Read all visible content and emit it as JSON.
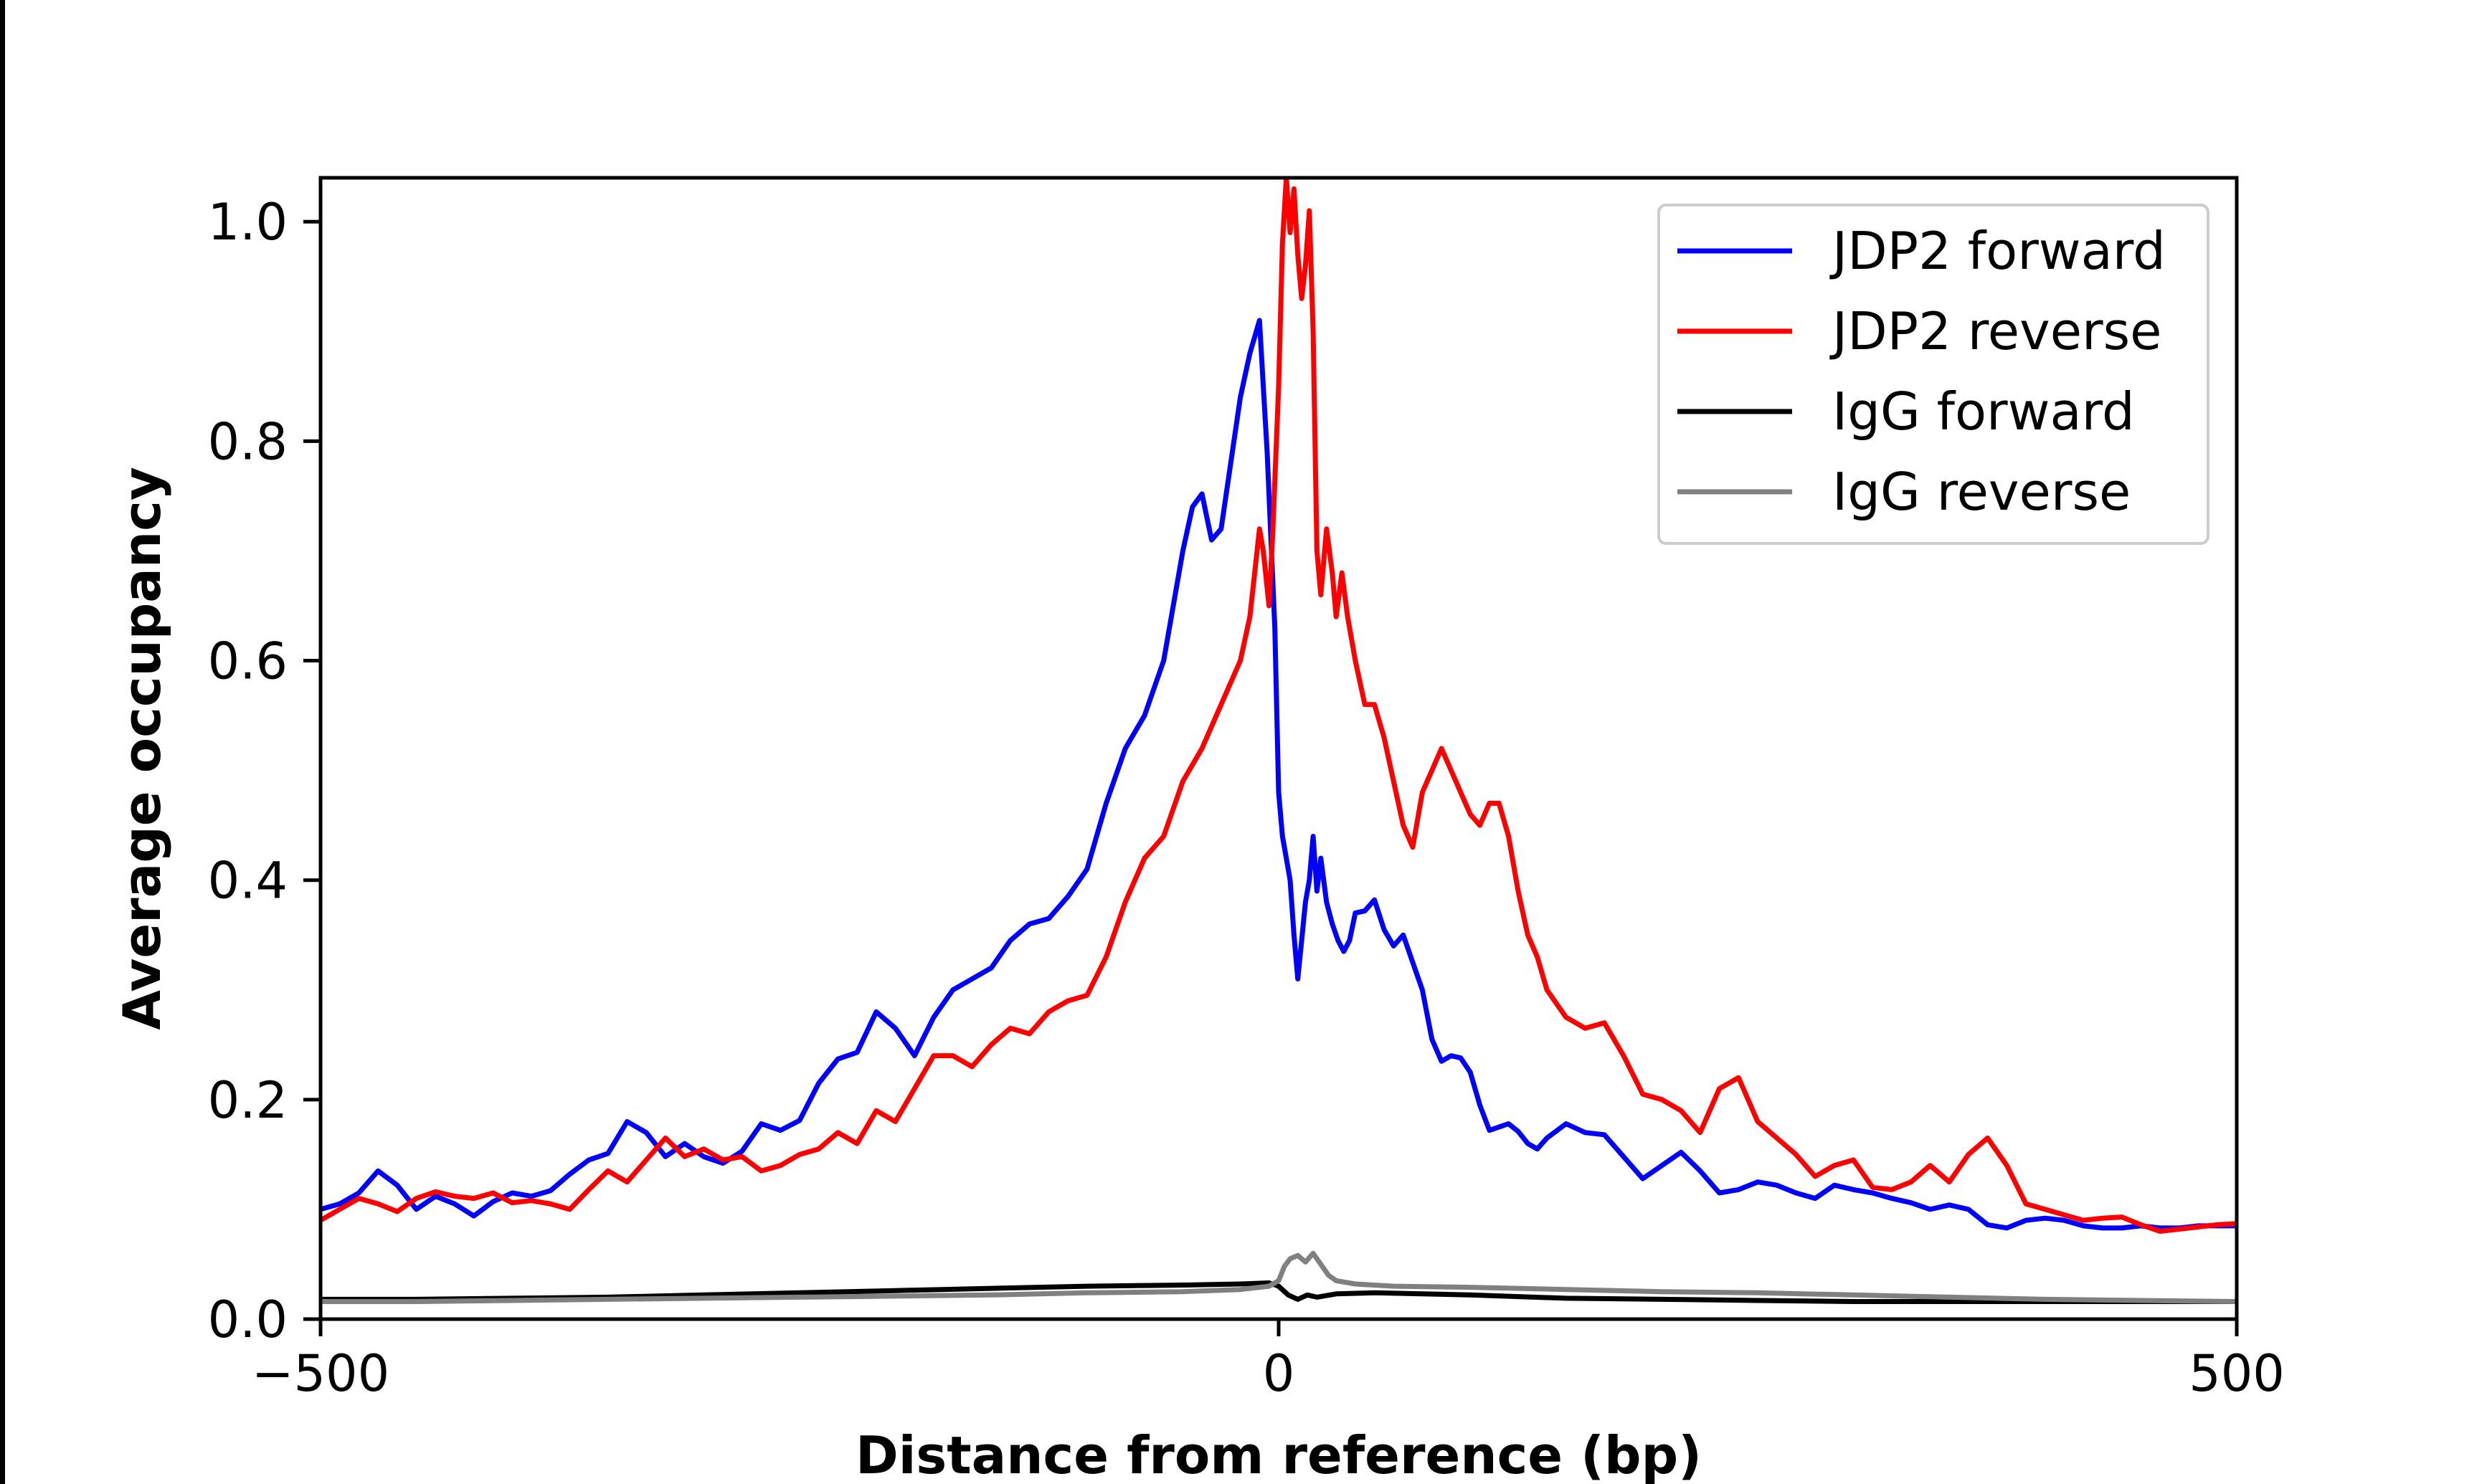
{
  "chart_data": {
    "type": "line",
    "title": "",
    "xlabel": "Distance from reference (bp)",
    "ylabel": "Average occupancy",
    "xlim": [
      -500,
      500
    ],
    "ylim": [
      0,
      1.04
    ],
    "xticks": [
      -500,
      0,
      500
    ],
    "xtick_labels": [
      "−500",
      "0",
      "500"
    ],
    "yticks": [
      0.0,
      0.2,
      0.4,
      0.6,
      0.8,
      1.0
    ],
    "ytick_labels": [
      "0.0",
      "0.2",
      "0.4",
      "0.6",
      "0.8",
      "1.0"
    ],
    "grid": false,
    "legend_position": "top-right",
    "series": [
      {
        "name": "JDP2 forward",
        "color": "#0000ff",
        "x": [
          -500,
          -490,
          -480,
          -470,
          -460,
          -450,
          -440,
          -430,
          -420,
          -410,
          -400,
          -390,
          -380,
          -370,
          -360,
          -350,
          -340,
          -330,
          -320,
          -310,
          -300,
          -290,
          -280,
          -270,
          -260,
          -250,
          -240,
          -230,
          -220,
          -210,
          -200,
          -190,
          -180,
          -170,
          -160,
          -150,
          -140,
          -130,
          -120,
          -110,
          -100,
          -90,
          -80,
          -70,
          -60,
          -50,
          -45,
          -40,
          -35,
          -30,
          -25,
          -20,
          -15,
          -10,
          -8,
          -6,
          -4,
          -2,
          0,
          2,
          4,
          6,
          8,
          10,
          12,
          14,
          16,
          18,
          20,
          22,
          25,
          28,
          31,
          34,
          37,
          40,
          45,
          50,
          55,
          60,
          65,
          70,
          75,
          80,
          85,
          90,
          95,
          100,
          105,
          110,
          115,
          120,
          125,
          130,
          135,
          140,
          150,
          160,
          170,
          180,
          190,
          200,
          210,
          220,
          230,
          240,
          250,
          260,
          270,
          280,
          290,
          300,
          310,
          320,
          330,
          340,
          350,
          360,
          370,
          380,
          390,
          400,
          410,
          420,
          430,
          440,
          450,
          460,
          470,
          480,
          490,
          500
        ],
        "y": [
          0.1,
          0.105,
          0.115,
          0.135,
          0.122,
          0.1,
          0.112,
          0.105,
          0.094,
          0.107,
          0.115,
          0.112,
          0.117,
          0.132,
          0.145,
          0.151,
          0.18,
          0.17,
          0.148,
          0.16,
          0.148,
          0.142,
          0.153,
          0.178,
          0.172,
          0.181,
          0.215,
          0.237,
          0.243,
          0.28,
          0.265,
          0.24,
          0.275,
          0.3,
          0.31,
          0.32,
          0.345,
          0.36,
          0.365,
          0.385,
          0.41,
          0.47,
          0.52,
          0.55,
          0.6,
          0.7,
          0.74,
          0.752,
          0.71,
          0.72,
          0.78,
          0.84,
          0.88,
          0.91,
          0.85,
          0.79,
          0.71,
          0.63,
          0.48,
          0.44,
          0.42,
          0.4,
          0.35,
          0.31,
          0.345,
          0.38,
          0.4,
          0.44,
          0.39,
          0.42,
          0.38,
          0.36,
          0.345,
          0.335,
          0.345,
          0.37,
          0.372,
          0.382,
          0.355,
          0.34,
          0.35,
          0.325,
          0.3,
          0.255,
          0.235,
          0.24,
          0.238,
          0.225,
          0.195,
          0.172,
          0.175,
          0.178,
          0.171,
          0.16,
          0.155,
          0.165,
          0.178,
          0.17,
          0.168,
          0.148,
          0.128,
          0.14,
          0.152,
          0.135,
          0.115,
          0.118,
          0.125,
          0.122,
          0.115,
          0.11,
          0.122,
          0.118,
          0.115,
          0.11,
          0.106,
          0.1,
          0.104,
          0.1,
          0.086,
          0.083,
          0.09,
          0.092,
          0.09,
          0.085,
          0.083,
          0.083,
          0.085,
          0.083,
          0.083,
          0.085,
          0.085,
          0.085
        ]
      },
      {
        "name": "JDP2 reverse",
        "color": "#ff0000",
        "x": [
          -500,
          -490,
          -480,
          -470,
          -460,
          -450,
          -440,
          -430,
          -420,
          -410,
          -400,
          -390,
          -380,
          -370,
          -360,
          -350,
          -340,
          -330,
          -320,
          -310,
          -300,
          -290,
          -280,
          -270,
          -260,
          -250,
          -240,
          -230,
          -220,
          -210,
          -200,
          -190,
          -180,
          -170,
          -160,
          -150,
          -140,
          -130,
          -120,
          -110,
          -100,
          -90,
          -80,
          -70,
          -60,
          -50,
          -40,
          -30,
          -20,
          -15,
          -10,
          -8,
          -5,
          -3,
          0,
          2,
          4,
          6,
          8,
          10,
          12,
          14,
          16,
          18,
          20,
          22,
          25,
          28,
          30,
          33,
          36,
          40,
          45,
          50,
          55,
          60,
          65,
          70,
          75,
          80,
          85,
          90,
          95,
          100,
          105,
          110,
          115,
          120,
          125,
          130,
          135,
          140,
          150,
          160,
          170,
          180,
          190,
          200,
          210,
          220,
          230,
          240,
          250,
          260,
          270,
          280,
          290,
          300,
          310,
          320,
          330,
          340,
          350,
          360,
          370,
          380,
          390,
          400,
          410,
          420,
          430,
          440,
          450,
          460,
          470,
          480,
          490,
          500
        ],
        "y": [
          0.09,
          0.1,
          0.11,
          0.105,
          0.098,
          0.11,
          0.116,
          0.112,
          0.11,
          0.115,
          0.106,
          0.108,
          0.105,
          0.1,
          0.118,
          0.135,
          0.125,
          0.145,
          0.165,
          0.148,
          0.155,
          0.145,
          0.148,
          0.135,
          0.14,
          0.15,
          0.155,
          0.17,
          0.16,
          0.19,
          0.18,
          0.21,
          0.24,
          0.24,
          0.23,
          0.25,
          0.265,
          0.26,
          0.28,
          0.29,
          0.295,
          0.33,
          0.38,
          0.42,
          0.44,
          0.49,
          0.52,
          0.56,
          0.6,
          0.64,
          0.72,
          0.7,
          0.65,
          0.72,
          0.85,
          0.98,
          1.04,
          0.99,
          1.03,
          0.97,
          0.93,
          0.96,
          1.01,
          0.9,
          0.7,
          0.66,
          0.72,
          0.68,
          0.64,
          0.68,
          0.64,
          0.6,
          0.56,
          0.56,
          0.53,
          0.49,
          0.45,
          0.43,
          0.48,
          0.5,
          0.52,
          0.5,
          0.48,
          0.46,
          0.45,
          0.47,
          0.47,
          0.44,
          0.39,
          0.35,
          0.33,
          0.3,
          0.275,
          0.265,
          0.27,
          0.24,
          0.205,
          0.2,
          0.19,
          0.17,
          0.21,
          0.22,
          0.18,
          0.165,
          0.15,
          0.13,
          0.14,
          0.145,
          0.12,
          0.118,
          0.125,
          0.14,
          0.125,
          0.15,
          0.165,
          0.14,
          0.105,
          0.1,
          0.095,
          0.09,
          0.092,
          0.093,
          0.086,
          0.08,
          0.082,
          0.084,
          0.086,
          0.087
        ]
      },
      {
        "name": "IgG forward",
        "color": "#000000",
        "x": [
          -500,
          -450,
          -400,
          -350,
          -300,
          -250,
          -200,
          -150,
          -100,
          -50,
          -20,
          -5,
          0,
          5,
          10,
          15,
          20,
          30,
          50,
          100,
          150,
          200,
          250,
          300,
          350,
          400,
          450,
          500
        ],
        "y": [
          0.018,
          0.018,
          0.019,
          0.02,
          0.022,
          0.024,
          0.026,
          0.028,
          0.03,
          0.031,
          0.032,
          0.033,
          0.03,
          0.022,
          0.018,
          0.022,
          0.02,
          0.023,
          0.024,
          0.022,
          0.019,
          0.018,
          0.017,
          0.016,
          0.016,
          0.016,
          0.016,
          0.016
        ]
      },
      {
        "name": "IgG reverse",
        "color": "#808080",
        "x": [
          -500,
          -450,
          -400,
          -350,
          -300,
          -250,
          -200,
          -150,
          -100,
          -50,
          -20,
          -5,
          0,
          3,
          6,
          10,
          14,
          18,
          22,
          26,
          30,
          40,
          60,
          100,
          150,
          200,
          250,
          300,
          350,
          400,
          450,
          500
        ],
        "y": [
          0.016,
          0.016,
          0.017,
          0.018,
          0.019,
          0.02,
          0.021,
          0.022,
          0.024,
          0.025,
          0.027,
          0.03,
          0.035,
          0.048,
          0.055,
          0.058,
          0.052,
          0.06,
          0.05,
          0.04,
          0.035,
          0.032,
          0.03,
          0.029,
          0.027,
          0.025,
          0.024,
          0.022,
          0.02,
          0.018,
          0.017,
          0.016
        ]
      }
    ]
  }
}
